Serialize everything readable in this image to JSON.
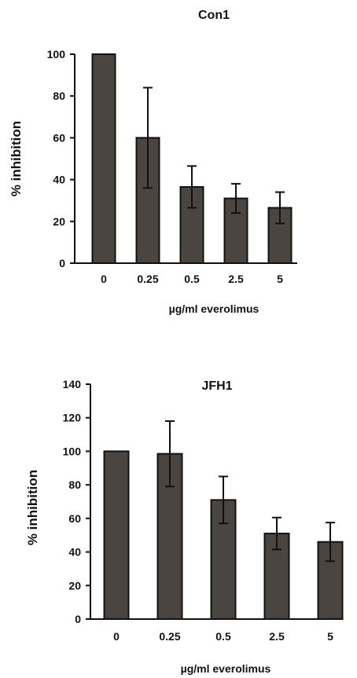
{
  "chart_data": [
    {
      "type": "bar",
      "title": "Con1",
      "xlabel": "µg/ml everolimus",
      "ylabel": "% inhibition",
      "categories": [
        "0",
        "0.25",
        "0.5",
        "2.5",
        "5"
      ],
      "values": [
        100,
        60,
        36.5,
        31,
        26.5
      ],
      "error": [
        0,
        24,
        10,
        7,
        7.5
      ],
      "ylim": [
        0,
        100
      ],
      "yticks": [
        0,
        20,
        40,
        60,
        80,
        100
      ],
      "bar_color": "#4a4541",
      "grid": false
    },
    {
      "type": "bar",
      "title": "JFH1",
      "xlabel": "µg/ml everolimus",
      "ylabel": "% inhibition",
      "categories": [
        "0",
        "0.25",
        "0.5",
        "2.5",
        "5"
      ],
      "values": [
        100,
        98.5,
        71,
        51,
        46
      ],
      "error": [
        0,
        19.5,
        14,
        9.5,
        11.5
      ],
      "ylim": [
        0,
        140
      ],
      "yticks": [
        0,
        20,
        40,
        60,
        80,
        100,
        120,
        140
      ],
      "bar_color": "#4a4541",
      "grid": false
    }
  ]
}
